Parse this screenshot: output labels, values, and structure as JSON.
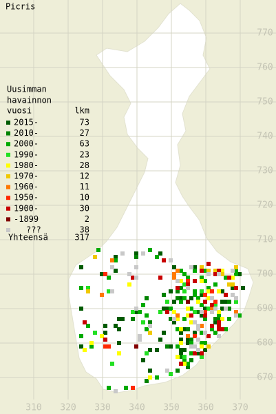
{
  "title": "Picris",
  "legend": {
    "header": [
      "Uusimman",
      "havainnon",
      "vuosi"
    ],
    "count_header": "lkm",
    "items": [
      {
        "label": "2015-",
        "count": 73,
        "color": "#005a00"
      },
      {
        "label": "2010-",
        "count": 27,
        "color": "#008200"
      },
      {
        "label": "2000-",
        "count": 63,
        "color": "#00aa00"
      },
      {
        "label": "1990-",
        "count": 23,
        "color": "#22e022"
      },
      {
        "label": "1980-",
        "count": 28,
        "color": "#ffff00"
      },
      {
        "label": "1970-",
        "count": 12,
        "color": "#f0c800"
      },
      {
        "label": "1960-",
        "count": 11,
        "color": "#ff7800"
      },
      {
        "label": "1950-",
        "count": 10,
        "color": "#ff2800"
      },
      {
        "label": "1900-",
        "count": 30,
        "color": "#c80000"
      },
      {
        "label": "-1899",
        "count": 2,
        "color": "#820000"
      },
      {
        "label": "???",
        "count": 38,
        "color": "#c8c8c8"
      }
    ],
    "total_label": "Yhteensä",
    "total": 317
  },
  "grid": {
    "xticks": [
      310,
      320,
      330,
      340,
      350,
      360,
      370
    ],
    "yticks": [
      670,
      680,
      690,
      700,
      710,
      720,
      730,
      740,
      750,
      760,
      770
    ]
  }
}
